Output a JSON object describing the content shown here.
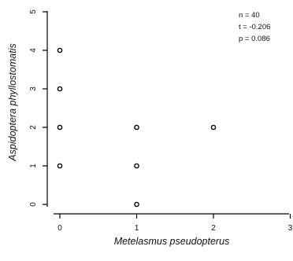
{
  "chart_data": {
    "type": "scatter",
    "xlabel": "Metelasmus pseudopterus",
    "ylabel": "Aspidoptera phyllostomatis",
    "xlim": [
      0,
      3
    ],
    "ylim": [
      0,
      5
    ],
    "x_ticks": [
      "0",
      "1",
      "2",
      "3"
    ],
    "y_ticks": [
      "0",
      "1",
      "2",
      "3",
      "4",
      "5"
    ],
    "points": [
      {
        "x": 0,
        "y": 1
      },
      {
        "x": 0,
        "y": 2
      },
      {
        "x": 0,
        "y": 3
      },
      {
        "x": 0,
        "y": 4
      },
      {
        "x": 1,
        "y": 0
      },
      {
        "x": 1,
        "y": 1
      },
      {
        "x": 1,
        "y": 2
      },
      {
        "x": 2,
        "y": 2
      }
    ],
    "annotations": [
      "n = 40",
      "t = -0.206",
      "p = 0.086"
    ],
    "grid": false
  }
}
